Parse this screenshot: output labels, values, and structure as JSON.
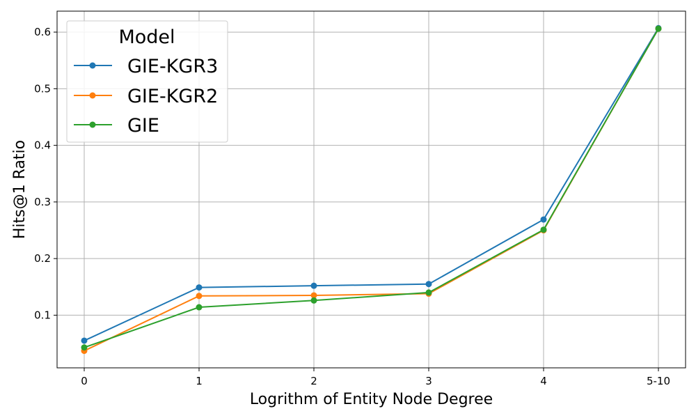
{
  "chart_data": {
    "type": "line",
    "title": "",
    "xlabel": "Logrithm of Entity Node Degree",
    "ylabel": "Hits@1 Ratio",
    "categories": [
      "0",
      "1",
      "2",
      "3",
      "4",
      "5-10"
    ],
    "ylim": [
      0.007,
      0.637
    ],
    "yticks": [
      0.1,
      0.2,
      0.3,
      0.4,
      0.5,
      0.6
    ],
    "ytick_labels": [
      "0.1",
      "0.2",
      "0.3",
      "0.4",
      "0.5",
      "0.6"
    ],
    "grid": true,
    "legend": {
      "title": "Model",
      "placement": "top-left"
    },
    "series": [
      {
        "name": "GIE-KGR3",
        "color": "#1f77b4",
        "values": [
          0.055,
          0.149,
          0.152,
          0.155,
          0.269,
          0.607
        ]
      },
      {
        "name": "GIE-KGR2",
        "color": "#ff7f0e",
        "values": [
          0.037,
          0.134,
          0.135,
          0.138,
          0.25,
          0.606
        ]
      },
      {
        "name": "GIE",
        "color": "#2ca02c",
        "values": [
          0.043,
          0.114,
          0.126,
          0.14,
          0.251,
          0.606
        ]
      }
    ]
  }
}
